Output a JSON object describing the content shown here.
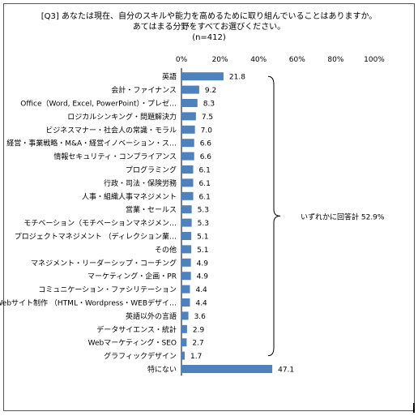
{
  "chart_data": {
    "type": "bar",
    "orientation": "horizontal",
    "title_line1": "[Q3] あなたは現在、自分のスキルや能力を高めるために取り組んでいることはありますか。",
    "title_line2": "あてはまる分野をすべてお選びください。",
    "subtitle": "(n=412)",
    "xlim": [
      0,
      100
    ],
    "ticks": [
      "0%",
      "20%",
      "40%",
      "60%",
      "80%",
      "100%"
    ],
    "bar_color": "#4f81bd",
    "categories": [
      "英語",
      "会計・ファイナンス",
      "Office（Word, Excel, PowerPoint）・プレゼ…",
      "ロジカルシンキング・問題解決力",
      "ビジネスマナー・社会人の常識・モラル",
      "経営・事業戦略・M&A・経営イノベーション・ス…",
      "情報セキュリティ・コンプライアンス",
      "プログラミング",
      "行政・司法・保険労務",
      "人事・組織人事マネジメント",
      "営業・セールス",
      "モチベーション（モチベーションマネジメン…",
      "プロジェクトマネジメント （ディレクション業…",
      "その他",
      "マネジメント・リーダーシップ・コーチング",
      "マーケティング・企画・PR",
      "コミュニケーション・ファシリテーション",
      "Webサイト制作 （HTML・Wordpress・WEBデザイ…",
      "英語以外の言語",
      "データサイエンス・統計",
      "Webマーケティング・SEO",
      "グラフィックデザイン",
      "特にない"
    ],
    "values": [
      21.8,
      9.2,
      8.3,
      7.5,
      7.0,
      6.6,
      6.6,
      6.1,
      6.1,
      6.1,
      5.3,
      5.3,
      5.1,
      5.1,
      4.9,
      4.9,
      4.4,
      4.4,
      3.6,
      2.9,
      2.7,
      1.7,
      47.1
    ],
    "value_labels": [
      "21.8",
      "9.2",
      "8.3",
      "7.5",
      "7.0",
      "6.6",
      "6.6",
      "6.1",
      "6.1",
      "6.1",
      "5.3",
      "5.3",
      "5.1",
      "5.1",
      "4.9",
      "4.9",
      "4.4",
      "4.4",
      "3.6",
      "2.9",
      "2.7",
      "1.7",
      "47.1"
    ],
    "bracket_annotation": "いずれかに回答計 52.9%"
  }
}
